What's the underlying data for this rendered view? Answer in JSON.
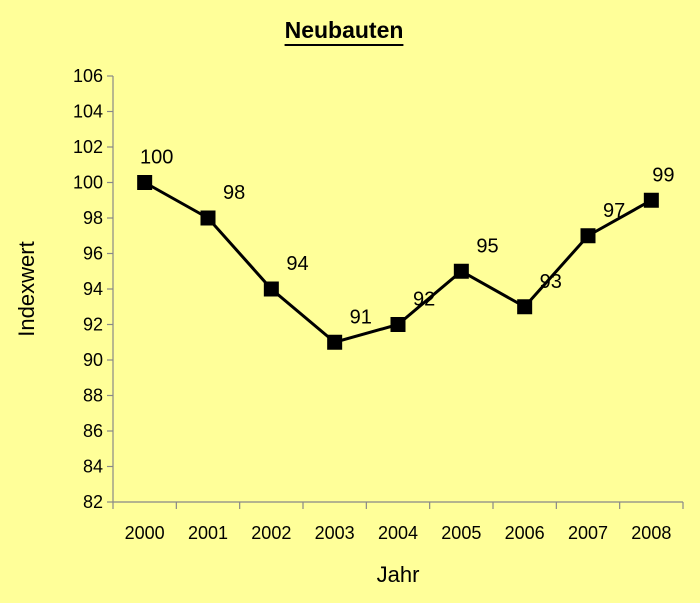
{
  "chart_data": {
    "type": "line",
    "title": "Neubauten",
    "xlabel": "Jahr",
    "ylabel": "Indexwert",
    "categories": [
      "2000",
      "2001",
      "2002",
      "2003",
      "2004",
      "2005",
      "2006",
      "2007",
      "2008"
    ],
    "series": [
      {
        "values": [
          100,
          98,
          94,
          91,
          92,
          95,
          93,
          97,
          99
        ],
        "data_labels": [
          "100",
          "98",
          "94",
          "91",
          "92",
          "95",
          "93",
          "97",
          "99"
        ],
        "marker": "square"
      }
    ],
    "ylim": [
      82,
      106
    ],
    "yticks": [
      "82",
      "84",
      "86",
      "88",
      "90",
      "92",
      "94",
      "96",
      "98",
      "100",
      "102",
      "104",
      "106"
    ],
    "grid": false,
    "legend": "none",
    "colors": {
      "background": "#FFFF99",
      "line": "#000000",
      "marker": "#000000"
    }
  }
}
